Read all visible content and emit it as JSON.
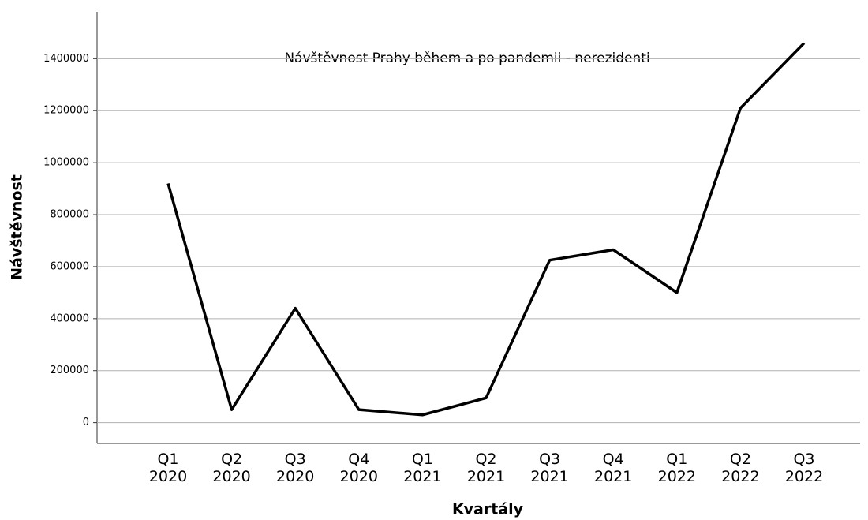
{
  "chart_data": {
    "type": "line",
    "title": "Návštěvnost Prahy během a po pandemii - nerezidenti",
    "x_label": "Kvartály",
    "y_label": "Návštěvnost",
    "categories": [
      "Q1 2020",
      "Q2 2020",
      "Q3 2020",
      "Q4 2020",
      "Q1 2021",
      "Q2 2021",
      "Q3 2021",
      "Q4 2021",
      "Q1 2022",
      "Q2 2022",
      "Q3 2022"
    ],
    "series": [
      {
        "name": "Návštěvnost",
        "color": "#000000",
        "values": [
          920000,
          50000,
          440000,
          50000,
          30000,
          95000,
          625000,
          665000,
          500000,
          1210000,
          1460000
        ]
      }
    ],
    "ylim": [
      -80000,
      1580000
    ],
    "yticks": [
      0,
      200000,
      400000,
      600000,
      800000,
      1000000,
      1200000,
      1400000
    ],
    "grid": true
  }
}
